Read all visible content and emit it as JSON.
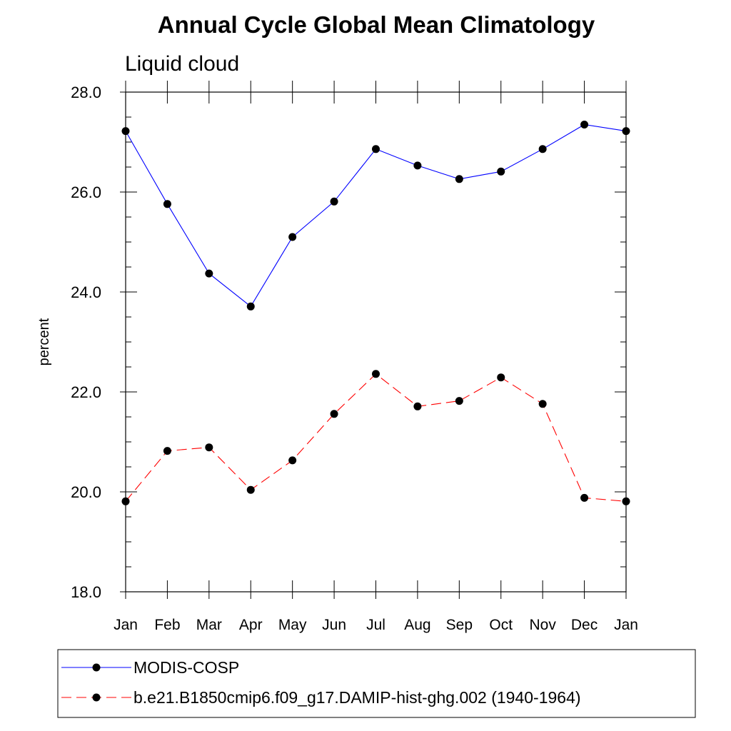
{
  "chart_data": {
    "type": "line",
    "title": "Annual Cycle Global Mean Climatology",
    "subtitle": "Liquid cloud",
    "xlabel": "",
    "ylabel": "percent",
    "categories": [
      "Jan",
      "Feb",
      "Mar",
      "Apr",
      "May",
      "Jun",
      "Jul",
      "Aug",
      "Sep",
      "Oct",
      "Nov",
      "Dec",
      "Jan"
    ],
    "ylim": [
      18.0,
      28.0
    ],
    "yticks": [
      "18.0",
      "20.0",
      "22.0",
      "24.0",
      "26.0",
      "28.0"
    ],
    "grid": false,
    "legend_position": "bottom",
    "series": [
      {
        "name": "MODIS-COSP",
        "color": "#0000ff",
        "line_style": "solid",
        "marker": "circle",
        "values": [
          27.22,
          25.76,
          24.37,
          23.71,
          25.1,
          25.81,
          26.86,
          26.53,
          26.26,
          26.41,
          26.86,
          27.35,
          27.22
        ]
      },
      {
        "name": "b.e21.B1850cmip6.f09_g17.DAMIP-hist-ghg.002 (1940-1964)",
        "color": "#ff0000",
        "line_style": "dashed",
        "marker": "circle",
        "values": [
          19.81,
          20.82,
          20.89,
          20.04,
          20.63,
          21.56,
          22.36,
          21.71,
          21.82,
          22.29,
          21.76,
          19.88,
          19.81
        ]
      }
    ]
  }
}
